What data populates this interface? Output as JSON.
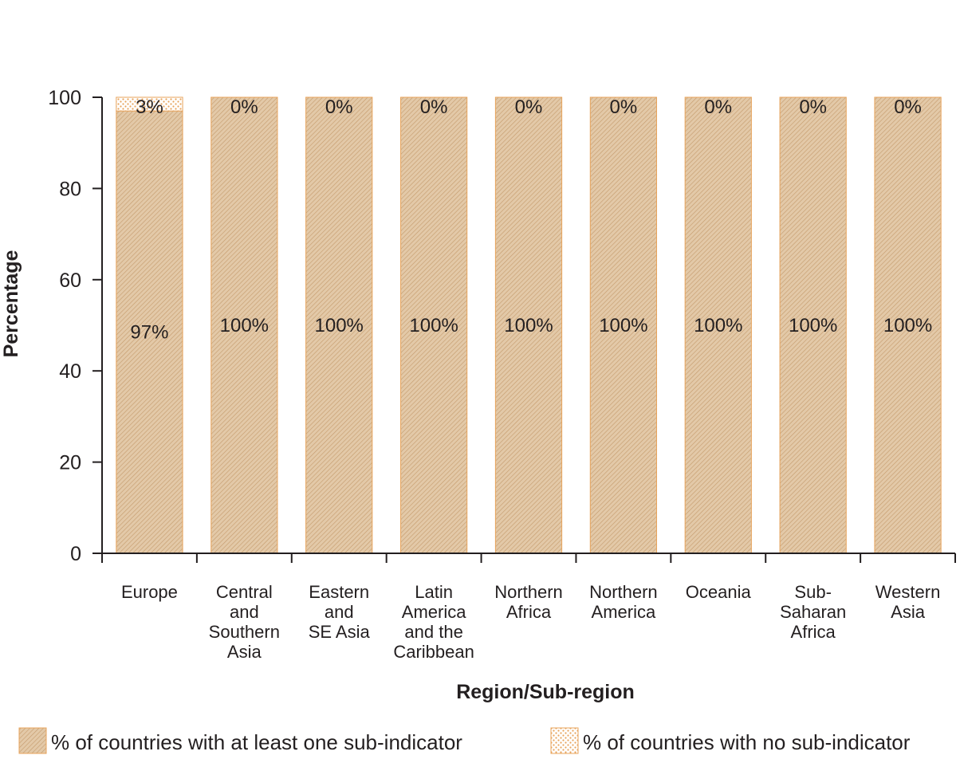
{
  "chart_data": {
    "type": "bar",
    "stacked": true,
    "categories": [
      [
        "Europe"
      ],
      [
        "Central",
        "and",
        "Southern",
        "Asia"
      ],
      [
        "Eastern",
        "and",
        "SE Asia"
      ],
      [
        "Latin",
        "America",
        "and the",
        "Caribbean"
      ],
      [
        "Northern",
        "Africa"
      ],
      [
        "Northern",
        "America"
      ],
      [
        "Oceania"
      ],
      [
        "Sub-",
        "Saharan",
        "Africa"
      ],
      [
        "Western",
        "Asia"
      ]
    ],
    "series": [
      {
        "name": "% of countries with at least one sub-indicator",
        "values": [
          97,
          100,
          100,
          100,
          100,
          100,
          100,
          100,
          100
        ],
        "labels": [
          "97%",
          "100%",
          "100%",
          "100%",
          "100%",
          "100%",
          "100%",
          "100%",
          "100%"
        ],
        "pattern": "diagonal-hatch",
        "color": "#dcbe99"
      },
      {
        "name": "% of countries with no sub-indicator",
        "values": [
          3,
          0,
          0,
          0,
          0,
          0,
          0,
          0,
          0
        ],
        "labels": [
          "3%",
          "0%",
          "0%",
          "0%",
          "0%",
          "0%",
          "0%",
          "0%",
          "0%"
        ],
        "pattern": "dots",
        "color": "#e8a45c"
      }
    ],
    "xlabel": "Region/Sub-region",
    "ylabel": "Percentage",
    "ylim": [
      0,
      100
    ],
    "yticks": [
      0,
      20,
      40,
      60,
      80,
      100
    ],
    "grid": false,
    "legend_position": "bottom",
    "bar_border_color": "#e8a45c",
    "axis_color": "#231f20"
  }
}
